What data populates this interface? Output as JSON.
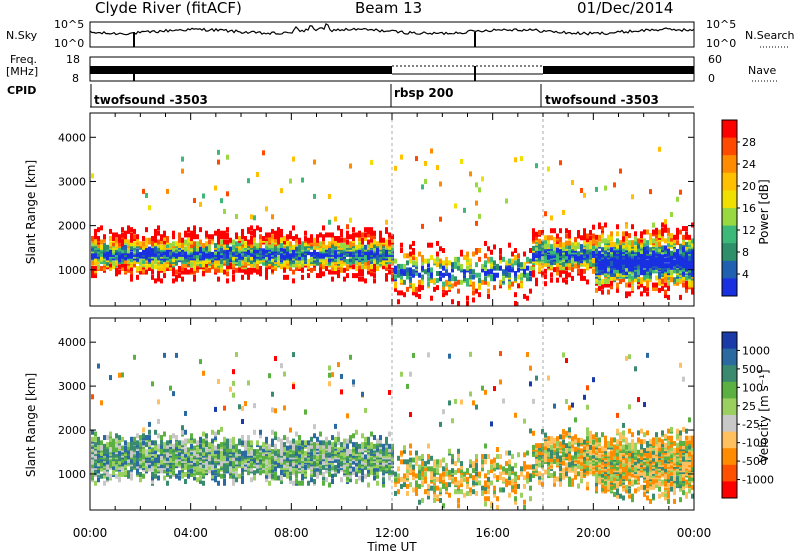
{
  "header": {
    "station": "Clyde River (fitACF)",
    "beam": "Beam 13",
    "date": "01/Dec/2014"
  },
  "top_panels": {
    "nsky_label": "N.Sky",
    "nsky_ticks": [
      "10^5",
      "10^0"
    ],
    "nsearch_label": "N.Search",
    "nsearch_ticks": [
      "10^5",
      "10^0"
    ],
    "freq_label": "Freq.",
    "freq_unit": "[MHz]",
    "freq_ticks": [
      "18",
      "8"
    ],
    "nave_label": "Nave",
    "nave_ticks": [
      "60",
      "0"
    ],
    "cpid_label": "CPID",
    "cpid_segments": [
      {
        "label": "twofsound -3503",
        "start_hour": 0
      },
      {
        "label": "rbsp 200",
        "start_hour": 12
      },
      {
        "label": "twofsound -3503",
        "start_hour": 18
      }
    ]
  },
  "chart_data": [
    {
      "type": "heatmap",
      "quantity": "power",
      "ylabel": "Slant Range [km]",
      "ylim": [
        180,
        4550
      ],
      "yticks": [
        1000,
        2000,
        3000,
        4000
      ],
      "xlim_hours": [
        0,
        24
      ],
      "colorbar": {
        "label": "Power [dB]",
        "ticks": [
          "28",
          "24",
          "20",
          "16",
          "12",
          "8",
          "4"
        ],
        "colors": [
          "#ff0000",
          "#ff4a00",
          "#ff8c00",
          "#ffc000",
          "#f0e000",
          "#98d840",
          "#3cb878",
          "#2e8f6a",
          "#2060b0",
          "#1830e0"
        ]
      }
    },
    {
      "type": "heatmap",
      "quantity": "velocity",
      "ylabel": "Slant Range [km]",
      "ylim": [
        180,
        4550
      ],
      "yticks": [
        1000,
        2000,
        3000,
        4000
      ],
      "xlim_hours": [
        0,
        24
      ],
      "colorbar": {
        "label": "Velocity [m s⁻¹]",
        "ticks": [
          "1000",
          "500",
          "100",
          "25",
          "-25",
          "-100",
          "-500",
          "-1000"
        ],
        "colors": [
          "#1a3aa8",
          "#2a6aa0",
          "#3a8a70",
          "#5ab040",
          "#9ad060",
          "#c8c8c8",
          "#ffc060",
          "#ff8c00",
          "#ff5000",
          "#ff0000"
        ]
      }
    }
  ],
  "xaxis": {
    "ticks": [
      "00:00",
      "04:00",
      "08:00",
      "12:00",
      "16:00",
      "20:00",
      "00:00"
    ],
    "label": "Time UT"
  }
}
